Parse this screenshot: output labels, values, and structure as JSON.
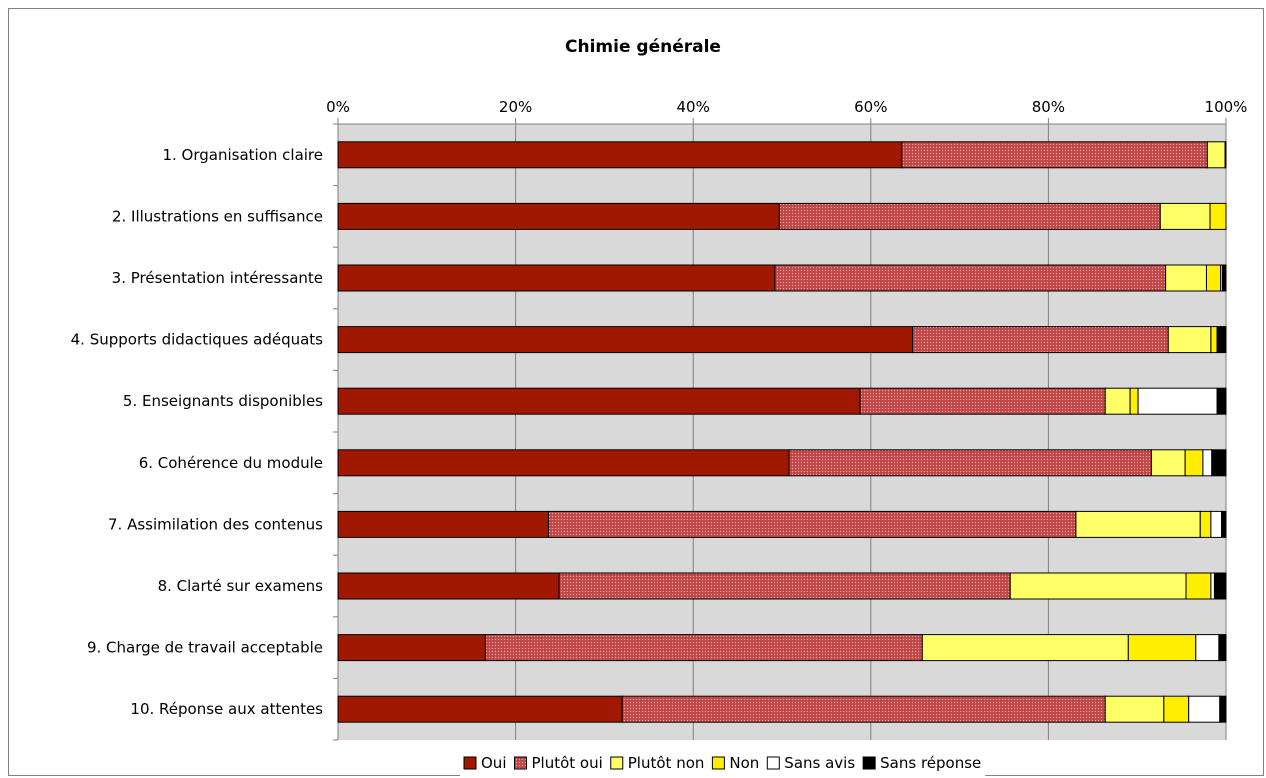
{
  "chart_data": {
    "type": "bar",
    "orientation": "horizontal",
    "stacked": "percent",
    "title": "Chimie générale",
    "xlabel": "",
    "ylabel": "",
    "xlim": [
      0,
      100
    ],
    "x_ticks": [
      "0%",
      "20%",
      "40%",
      "60%",
      "80%",
      "100%"
    ],
    "x_axis_position": "top",
    "grid": true,
    "legend_position": "bottom",
    "categories": [
      "1. Organisation claire",
      "2. Illustrations en suffisance",
      "3. Présentation intéressante",
      "4. Supports didactiques adéquats",
      "5. Enseignants disponibles",
      "6. Cohérence du module",
      "7. Assimilation des contenus",
      "8. Clarté sur examens",
      "9. Charge de travail acceptable",
      "10. Réponse aux attentes"
    ],
    "series": [
      {
        "name": "Oui",
        "color": "#a01800",
        "pattern": "solid",
        "values": [
          63.5,
          49.7,
          49.2,
          64.7,
          58.8,
          50.8,
          23.7,
          24.9,
          16.6,
          32.0
        ]
      },
      {
        "name": "Plutôt oui",
        "color": "#c85050",
        "pattern": "dotted",
        "values": [
          34.4,
          42.9,
          44.0,
          28.8,
          27.6,
          40.8,
          59.4,
          50.8,
          49.2,
          54.4
        ]
      },
      {
        "name": "Plutôt non",
        "color": "#ffff66",
        "pattern": "solid",
        "values": [
          2.0,
          5.6,
          4.6,
          4.8,
          2.8,
          3.8,
          14.0,
          19.8,
          23.2,
          6.6
        ]
      },
      {
        "name": "Non",
        "color": "#ffee00",
        "pattern": "solid",
        "values": [
          0.0,
          1.8,
          1.6,
          0.7,
          0.9,
          2.0,
          1.2,
          2.8,
          7.6,
          2.8
        ]
      },
      {
        "name": "Sans avis",
        "color": "#ffffff",
        "pattern": "solid",
        "values": [
          0.0,
          0.0,
          0.2,
          0.0,
          8.9,
          1.0,
          1.2,
          0.4,
          2.6,
          3.5
        ]
      },
      {
        "name": "Sans réponse",
        "color": "#000000",
        "pattern": "solid",
        "values": [
          0.1,
          0.0,
          0.4,
          1.0,
          1.0,
          1.6,
          0.5,
          1.3,
          0.8,
          0.7
        ]
      }
    ]
  }
}
